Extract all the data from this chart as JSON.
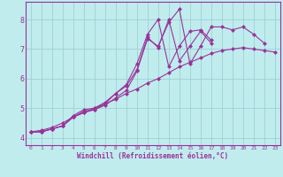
{
  "xlabel": "Windchill (Refroidissement éolien,°C)",
  "xlim": [
    -0.5,
    23.5
  ],
  "ylim": [
    3.75,
    8.6
  ],
  "xticks": [
    0,
    1,
    2,
    3,
    4,
    5,
    6,
    7,
    8,
    9,
    10,
    11,
    12,
    13,
    14,
    15,
    16,
    17,
    18,
    19,
    20,
    21,
    22,
    23
  ],
  "yticks": [
    4,
    5,
    6,
    7,
    8
  ],
  "bg_color": "#c0ecee",
  "line_color": "#993399",
  "grid_color": "#99cccc",
  "series": [
    {
      "x": [
        0,
        1,
        2,
        3,
        4,
        5,
        6,
        7,
        8,
        9,
        10,
        11,
        12,
        13,
        14,
        15,
        16,
        17,
        18,
        19,
        20,
        21,
        22
      ],
      "y": [
        4.2,
        4.2,
        4.3,
        4.4,
        4.7,
        4.85,
        4.95,
        5.1,
        5.35,
        5.6,
        6.25,
        7.35,
        7.1,
        7.9,
        8.35,
        6.5,
        7.1,
        7.75,
        7.75,
        7.65,
        7.75,
        7.5,
        7.2
      ]
    },
    {
      "x": [
        0,
        1,
        2,
        3,
        4,
        5,
        6,
        7,
        8,
        9,
        10,
        11,
        12,
        13,
        14,
        15,
        16,
        17,
        18,
        19,
        20,
        21,
        22,
        23
      ],
      "y": [
        4.2,
        4.25,
        4.35,
        4.5,
        4.7,
        4.85,
        5.0,
        5.15,
        5.3,
        5.5,
        5.65,
        5.85,
        6.0,
        6.2,
        6.4,
        6.55,
        6.7,
        6.85,
        6.95,
        7.0,
        7.05,
        7.0,
        6.95,
        6.9
      ]
    },
    {
      "x": [
        0,
        1,
        2,
        3,
        4,
        5,
        6,
        7,
        8,
        9,
        10,
        11,
        12,
        13,
        14,
        15,
        16,
        17
      ],
      "y": [
        4.2,
        4.2,
        4.3,
        4.4,
        4.75,
        4.95,
        5.0,
        5.2,
        5.5,
        5.8,
        6.5,
        7.5,
        8.0,
        6.4,
        7.1,
        7.6,
        7.65,
        7.3
      ]
    },
    {
      "x": [
        0,
        1,
        2,
        3,
        4,
        5,
        6,
        7,
        8,
        9,
        10,
        11,
        12,
        13,
        14,
        15,
        16,
        17
      ],
      "y": [
        4.2,
        4.2,
        4.3,
        4.4,
        4.7,
        4.9,
        4.95,
        5.15,
        5.5,
        5.75,
        6.3,
        7.4,
        7.05,
        8.0,
        6.6,
        7.1,
        7.6,
        7.2
      ]
    }
  ],
  "marker": "D",
  "markersize": 2.5,
  "linewidth": 0.8
}
